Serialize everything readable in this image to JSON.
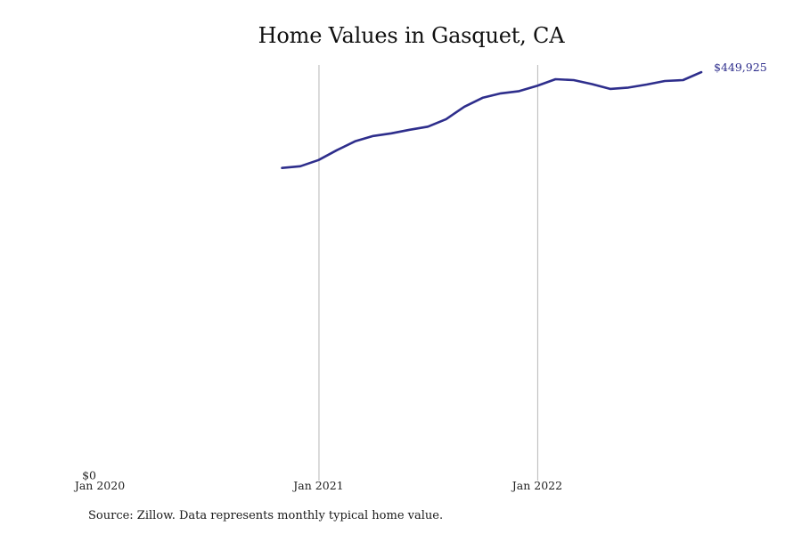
{
  "chart_data": {
    "type": "line",
    "title": "Home Values in Gasquet, CA",
    "xlabel": "",
    "ylabel": "",
    "y_tick_labels": [
      "$0"
    ],
    "x_tick_labels": [
      "Jan 2020",
      "Jan 2021",
      "Jan 2022"
    ],
    "x_tick_dates": [
      "2020-01",
      "2021-01",
      "2022-01"
    ],
    "xlim": [
      "2020-01",
      "2022-10"
    ],
    "ylim": [
      0,
      458000
    ],
    "grid": "vertical lines at Jan 2021 and Jan 2022",
    "line_color": "#2e2e8c",
    "series": [
      {
        "points": [
          {
            "x": "2020-11",
            "y": 342000
          },
          {
            "x": "2020-12",
            "y": 344000
          },
          {
            "x": "2021-01",
            "y": 351000
          },
          {
            "x": "2021-02",
            "y": 362000
          },
          {
            "x": "2021-03",
            "y": 372000
          },
          {
            "x": "2021-04",
            "y": 378000
          },
          {
            "x": "2021-05",
            "y": 381000
          },
          {
            "x": "2021-06",
            "y": 385000
          },
          {
            "x": "2021-07",
            "y": 388500
          },
          {
            "x": "2021-08",
            "y": 397000
          },
          {
            "x": "2021-09",
            "y": 411000
          },
          {
            "x": "2021-10",
            "y": 421000
          },
          {
            "x": "2021-11",
            "y": 426000
          },
          {
            "x": "2021-12",
            "y": 428500
          },
          {
            "x": "2022-01",
            "y": 434500
          },
          {
            "x": "2022-02",
            "y": 442000
          },
          {
            "x": "2022-03",
            "y": 441000
          },
          {
            "x": "2022-04",
            "y": 436500
          },
          {
            "x": "2022-05",
            "y": 431000
          },
          {
            "x": "2022-06",
            "y": 432500
          },
          {
            "x": "2022-07",
            "y": 436000
          },
          {
            "x": "2022-08",
            "y": 440000
          },
          {
            "x": "2022-09",
            "y": 441000
          },
          {
            "x": "2022-10",
            "y": 449925
          }
        ]
      }
    ],
    "end_label": "$449,925",
    "source": "Source: Zillow. Data represents monthly typical home value."
  }
}
